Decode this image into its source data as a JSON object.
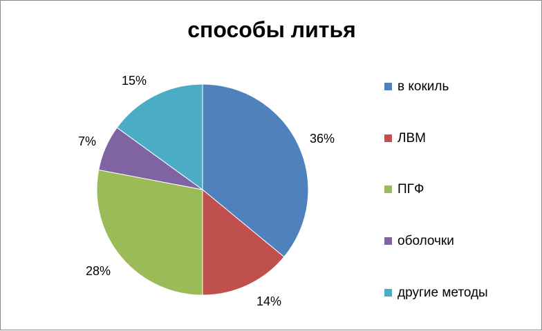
{
  "chart_data": {
    "type": "pie",
    "title": "способы литья",
    "slices": [
      {
        "name": "в кокиль",
        "value": 36,
        "label": "36%",
        "color": "#4F81BD"
      },
      {
        "name": "ЛВМ",
        "value": 14,
        "label": "14%",
        "color": "#C0504D"
      },
      {
        "name": "ПГФ",
        "value": 28,
        "label": "28%",
        "color": "#9BBB59"
      },
      {
        "name": "оболочки",
        "value": 7,
        "label": "7%",
        "color": "#8064A2"
      },
      {
        "name": "другие методы",
        "value": 15,
        "label": "15%",
        "color": "#4BACC6"
      }
    ],
    "legend_position": "right",
    "start": "12 o'clock",
    "direction": "clockwise"
  }
}
